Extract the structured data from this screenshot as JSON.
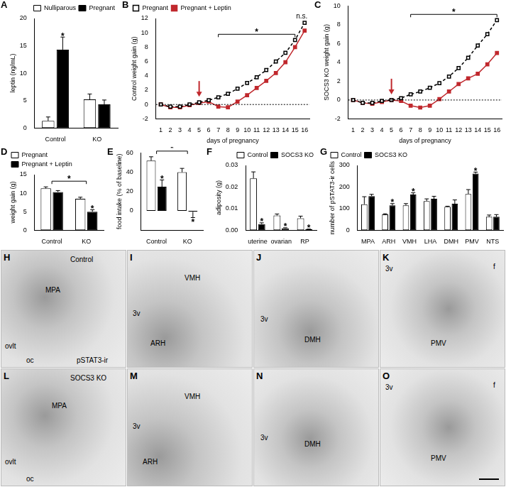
{
  "chart_data": [
    {
      "panel": "A",
      "type": "bar",
      "y_label": "leptin (ng/mL)",
      "categories": [
        "Control",
        "KO"
      ],
      "series": [
        {
          "name": "Nulliparous",
          "color": "#ffffff",
          "values": [
            1.3,
            5.2
          ],
          "errors": [
            0.7,
            1.0
          ]
        },
        {
          "name": "Pregnant",
          "color": "#000000",
          "values": [
            14.3,
            4.3
          ],
          "errors": [
            2.3,
            0.8
          ]
        }
      ],
      "ylim": [
        0,
        20
      ],
      "yticks": [
        0,
        5,
        10,
        15,
        20
      ],
      "grid": false,
      "legend": "top-right",
      "annotations": [
        {
          "text": "*",
          "series": 1,
          "category": "Control"
        }
      ]
    },
    {
      "panel": "B",
      "type": "line",
      "x_label": "days of pregnancy",
      "y_label": "Control weight gain (g)",
      "x": [
        1,
        2,
        3,
        4,
        5,
        6,
        7,
        8,
        9,
        10,
        11,
        12,
        13,
        14,
        15,
        16
      ],
      "series": [
        {
          "name": "Pregnant",
          "color": "#000000",
          "marker": "square_open",
          "line_style": "dashed",
          "values": [
            0,
            -0.3,
            -0.3,
            0,
            0.3,
            0.6,
            1.0,
            1.5,
            2.2,
            3.0,
            3.8,
            4.8,
            6.0,
            7.2,
            9.0,
            11.4
          ]
        },
        {
          "name": "Pregnant + Leptin",
          "color": "#c0282d",
          "marker": "square",
          "line_style": "solid",
          "values": [
            0,
            -0.4,
            -0.4,
            -0.1,
            0.2,
            0.4,
            -0.3,
            -0.4,
            0.4,
            1.3,
            2.3,
            3.3,
            4.4,
            5.9,
            8.0,
            10.3
          ]
        }
      ],
      "xlim": [
        0.5,
        16.5
      ],
      "xticks": [
        1,
        2,
        3,
        4,
        5,
        6,
        7,
        8,
        9,
        10,
        11,
        12,
        13,
        14,
        15,
        16
      ],
      "ylim": [
        -2,
        12
      ],
      "yticks": [
        -2,
        0,
        2,
        4,
        6,
        8,
        10,
        12
      ],
      "grid": false,
      "legend": "top-left",
      "annotations": [
        {
          "type": "hline",
          "y": 0
        },
        {
          "type": "arrow",
          "x": 5,
          "color": "#c0282d"
        },
        {
          "text": "*",
          "from": 7,
          "to": 15
        },
        {
          "text": "n.s.",
          "x": 16
        }
      ]
    },
    {
      "panel": "C",
      "type": "line",
      "x_label": "days of pregnancy",
      "y_label": "SOCS3 KO weight gain (g)",
      "x": [
        1,
        2,
        3,
        4,
        5,
        6,
        7,
        8,
        9,
        10,
        11,
        12,
        13,
        14,
        15,
        16
      ],
      "series": [
        {
          "color": "#000000",
          "marker": "square_open",
          "line_style": "dashed",
          "values": [
            0,
            -0.3,
            -0.3,
            -0.1,
            0,
            0.2,
            0.6,
            0.9,
            1.3,
            1.8,
            2.5,
            3.4,
            4.5,
            5.8,
            7.0,
            8.5
          ]
        },
        {
          "color": "#c0282d",
          "marker": "square",
          "line_style": "solid",
          "values": [
            0,
            -0.3,
            -0.4,
            -0.2,
            0,
            -0.1,
            -0.6,
            -0.8,
            -0.6,
            0.1,
            0.9,
            1.7,
            2.3,
            2.8,
            3.8,
            5.0
          ]
        }
      ],
      "xlim": [
        0.5,
        16.5
      ],
      "xticks": [
        1,
        2,
        3,
        4,
        5,
        6,
        7,
        8,
        9,
        10,
        11,
        12,
        13,
        14,
        15,
        16
      ],
      "ylim": [
        -2,
        10
      ],
      "yticks": [
        -2,
        0,
        2,
        4,
        6,
        8,
        10
      ],
      "grid": false,
      "annotations": [
        {
          "type": "hline",
          "y": 0
        },
        {
          "type": "arrow",
          "x": 5,
          "color": "#c0282d"
        },
        {
          "text": "*",
          "from": 7,
          "to": 16
        }
      ]
    },
    {
      "panel": "D",
      "type": "bar",
      "y_label": "weight gain (g)",
      "categories": [
        "Control",
        "KO"
      ],
      "series": [
        {
          "name": "Pregnant",
          "color": "#ffffff",
          "values": [
            11.3,
            8.5
          ],
          "errors": [
            0.4,
            0.4
          ]
        },
        {
          "name": "Pregnant + Leptin",
          "color": "#000000",
          "values": [
            10.3,
            5.0
          ],
          "errors": [
            0.4,
            0.5
          ]
        }
      ],
      "ylim": [
        0,
        15
      ],
      "yticks": [
        0,
        5,
        10,
        15
      ],
      "grid": false,
      "legend": "top-left",
      "annotations": [
        {
          "text": "*",
          "from": "Control",
          "to": "KO"
        },
        {
          "text": "*",
          "series": 1,
          "category": "KO"
        }
      ]
    },
    {
      "panel": "E",
      "type": "bar",
      "y_label": "food intake (% of baseline)",
      "categories": [
        "Control",
        "KO"
      ],
      "series": [
        {
          "color": "#ffffff",
          "values": [
            52,
            40
          ],
          "errors": [
            4,
            4
          ]
        },
        {
          "color": "#000000",
          "values": [
            25,
            -1
          ],
          "errors": [
            7,
            6
          ]
        }
      ],
      "ylim": [
        -20,
        60
      ],
      "yticks": [
        0,
        20,
        40,
        60
      ],
      "grid": false,
      "annotations": [
        {
          "text": "*",
          "from": "Control",
          "to": "KO"
        },
        {
          "text": "*",
          "series": 1,
          "category": "Control"
        },
        {
          "text": "*",
          "series": 1,
          "category": "KO"
        }
      ]
    },
    {
      "panel": "F",
      "type": "bar",
      "y_label": "adiposity (g)",
      "categories": [
        "uterine",
        "ovarian",
        "RP"
      ],
      "series": [
        {
          "name": "Control",
          "color": "#ffffff",
          "values": [
            0.024,
            0.0068,
            0.0055
          ],
          "errors": [
            0.003,
            0.0007,
            0.001
          ]
        },
        {
          "name": "SOCS3 KO",
          "color": "#000000",
          "values": [
            0.0028,
            0.0009,
            0.0004
          ],
          "errors": [
            0.0006,
            0.0002,
            0.0001
          ]
        }
      ],
      "ylim": [
        0,
        0.03
      ],
      "yticks": [
        {
          "value": 0,
          "label": "0.00"
        },
        {
          "value": 0.01,
          "label": "0.01"
        },
        {
          "value": 0.02,
          "label": "0.02"
        },
        {
          "value": 0.03,
          "label": "0.03"
        }
      ],
      "grid": false,
      "legend": "top-right",
      "annotations": [
        {
          "text": "*",
          "series": 1,
          "category": "uterine"
        },
        {
          "text": "*",
          "series": 1,
          "category": "ovarian"
        },
        {
          "text": "*",
          "series": 1,
          "category": "RP"
        }
      ]
    },
    {
      "panel": "G",
      "type": "bar",
      "y_label": "number of pSTAT3-ir cells",
      "categories": [
        "MPA",
        "ARH",
        "VMH",
        "LHA",
        "DMH",
        "PMV",
        "NTS"
      ],
      "series": [
        {
          "name": "Control",
          "color": "#ffffff",
          "values": [
            120,
            73,
            115,
            135,
            108,
            168,
            62
          ],
          "errors": [
            35,
            3,
            8,
            10,
            3,
            20,
            8
          ]
        },
        {
          "name": "SOCS3 KO",
          "color": "#000000",
          "values": [
            158,
            115,
            165,
            145,
            122,
            262,
            62
          ],
          "errors": [
            8,
            8,
            8,
            12,
            18,
            7,
            10
          ]
        }
      ],
      "ylim": [
        0,
        300
      ],
      "yticks": [
        0,
        100,
        200,
        300
      ],
      "grid": false,
      "legend": "top-left",
      "annotations": [
        {
          "text": "*",
          "series": 1,
          "category": "ARH"
        },
        {
          "text": "*",
          "series": 1,
          "category": "VMH"
        },
        {
          "text": "*",
          "series": 1,
          "category": "PMV"
        }
      ]
    }
  ],
  "micrographs": [
    {
      "panel": "H",
      "labels": [
        "Control",
        "MPA",
        "ovlt",
        "oc",
        "pSTAT3-ir"
      ]
    },
    {
      "panel": "I",
      "labels": [
        "VMH",
        "3v",
        "ARH"
      ]
    },
    {
      "panel": "J",
      "labels": [
        "3v",
        "DMH"
      ]
    },
    {
      "panel": "K",
      "labels": [
        "3v",
        "f",
        "PMV"
      ]
    },
    {
      "panel": "L",
      "labels": [
        "SOCS3 KO",
        "MPA",
        "ovlt",
        "oc"
      ]
    },
    {
      "panel": "M",
      "labels": [
        "3v",
        "VMH",
        "ARH"
      ]
    },
    {
      "panel": "N",
      "labels": [
        "3v",
        "DMH"
      ]
    },
    {
      "panel": "O",
      "labels": [
        "3v",
        "f",
        "PMV"
      ]
    }
  ]
}
